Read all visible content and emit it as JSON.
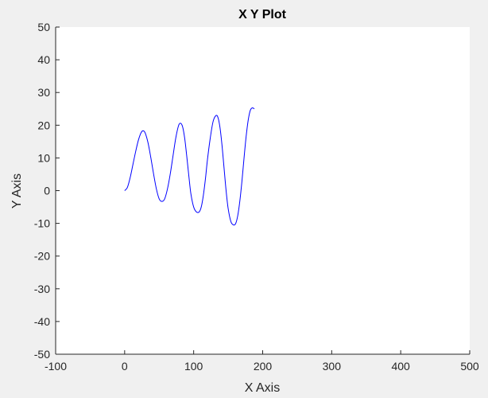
{
  "chart_data": {
    "type": "line",
    "title": "X Y Plot",
    "xlabel": "X Axis",
    "ylabel": "Y Axis",
    "xlim": [
      -100,
      500
    ],
    "ylim": [
      -50,
      50
    ],
    "xticks": [
      -100,
      0,
      100,
      200,
      300,
      400,
      500
    ],
    "yticks": [
      -50,
      -40,
      -30,
      -20,
      -10,
      0,
      10,
      20,
      30,
      40,
      50
    ],
    "xtick_labels": [
      "-100",
      "0",
      "100",
      "200",
      "300",
      "400",
      "500"
    ],
    "ytick_labels": [
      "-50",
      "-40",
      "-30",
      "-20",
      "-10",
      "0",
      "10",
      "20",
      "30",
      "40",
      "50"
    ],
    "grid": false,
    "series": [
      {
        "color": "#0000ff",
        "points": [
          [
            0,
            0
          ],
          [
            4,
            1
          ],
          [
            8,
            4
          ],
          [
            12,
            8
          ],
          [
            16,
            12
          ],
          [
            20,
            15.5
          ],
          [
            24,
            17.8
          ],
          [
            27,
            18.3
          ],
          [
            30,
            17.5
          ],
          [
            34,
            14.5
          ],
          [
            38,
            10
          ],
          [
            42,
            5
          ],
          [
            46,
            0.5
          ],
          [
            50,
            -2.5
          ],
          [
            54,
            -3.3
          ],
          [
            58,
            -2.5
          ],
          [
            62,
            0.5
          ],
          [
            66,
            5
          ],
          [
            70,
            10.5
          ],
          [
            74,
            16
          ],
          [
            78,
            19.8
          ],
          [
            81,
            20.6
          ],
          [
            84,
            19.5
          ],
          [
            87,
            16
          ],
          [
            90,
            10.5
          ],
          [
            93,
            4.5
          ],
          [
            96,
            -1
          ],
          [
            100,
            -5
          ],
          [
            104,
            -6.5
          ],
          [
            108,
            -6.5
          ],
          [
            111,
            -5
          ],
          [
            114,
            -1.5
          ],
          [
            117,
            3.5
          ],
          [
            120,
            9.5
          ],
          [
            124,
            16
          ],
          [
            128,
            21
          ],
          [
            132,
            22.9
          ],
          [
            135,
            22.5
          ],
          [
            138,
            19.5
          ],
          [
            141,
            14
          ],
          [
            144,
            7
          ],
          [
            147,
            0
          ],
          [
            150,
            -5.5
          ],
          [
            154,
            -9.5
          ],
          [
            158,
            -10.5
          ],
          [
            161,
            -10
          ],
          [
            164,
            -7.5
          ],
          [
            167,
            -3
          ],
          [
            170,
            3
          ],
          [
            173,
            10
          ],
          [
            176,
            16.5
          ],
          [
            179,
            21.5
          ],
          [
            182,
            24.5
          ],
          [
            185,
            25.3
          ],
          [
            188,
            25
          ]
        ]
      }
    ]
  }
}
